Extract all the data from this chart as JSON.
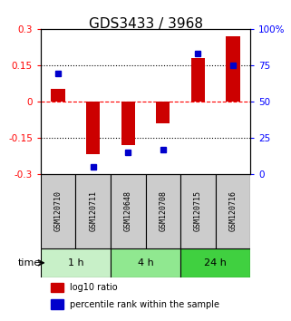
{
  "title": "GDS3433 / 3968",
  "samples": [
    "GSM120710",
    "GSM120711",
    "GSM120648",
    "GSM120708",
    "GSM120715",
    "GSM120716"
  ],
  "log10_ratio": [
    0.05,
    -0.22,
    -0.18,
    -0.09,
    0.18,
    0.27
  ],
  "percentile_rank": [
    69,
    5,
    15,
    17,
    83,
    75
  ],
  "groups": [
    {
      "label": "1 h",
      "samples": [
        0,
        1
      ],
      "color": "#c8f0c8"
    },
    {
      "label": "4 h",
      "samples": [
        2,
        3
      ],
      "color": "#90e890"
    },
    {
      "label": "24 h",
      "samples": [
        4,
        5
      ],
      "color": "#40d040"
    }
  ],
  "bar_color": "#cc0000",
  "dot_color": "#0000cc",
  "ylim": [
    -0.3,
    0.3
  ],
  "y2lim": [
    0,
    100
  ],
  "yticks": [
    -0.3,
    -0.15,
    0,
    0.15,
    0.3
  ],
  "ytick_labels": [
    "-0.3",
    "-0.15",
    "0",
    "0.15",
    "0.3"
  ],
  "y2ticks": [
    0,
    25,
    50,
    75,
    100
  ],
  "y2tick_labels": [
    "0",
    "25",
    "50",
    "75",
    "100%"
  ],
  "hlines": [
    -0.15,
    0,
    0.15
  ],
  "legend_red": "log10 ratio",
  "legend_blue": "percentile rank within the sample",
  "time_label": "time",
  "sample_box_color": "#cccccc",
  "title_fontsize": 11,
  "tick_fontsize": 7.5,
  "axis_label_fontsize": 8
}
